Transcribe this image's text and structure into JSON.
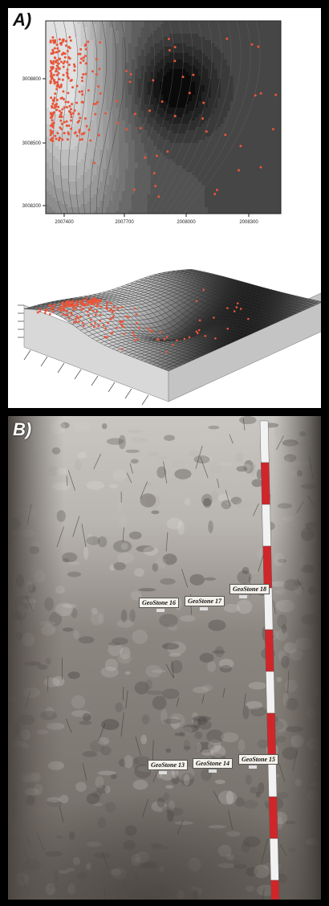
{
  "panel_a": {
    "label": "A)",
    "contour_map": {
      "x_ticks": [
        "2007400",
        "2007700",
        "2008000",
        "2008300"
      ],
      "y_ticks": [
        "3008800",
        "3008500",
        "3008200"
      ]
    },
    "surface_3d": {}
  },
  "panel_b": {
    "label": "B)",
    "tags": [
      "GeoStone 16",
      "GeoStone 17",
      "GeoStone 18",
      "GeoStone 13",
      "GeoStone 14",
      "GeoStone 15"
    ]
  },
  "colors": {
    "points": "#e8553a",
    "ruler_red": "#d0262a",
    "ruler_white": "#f2f2f2"
  }
}
